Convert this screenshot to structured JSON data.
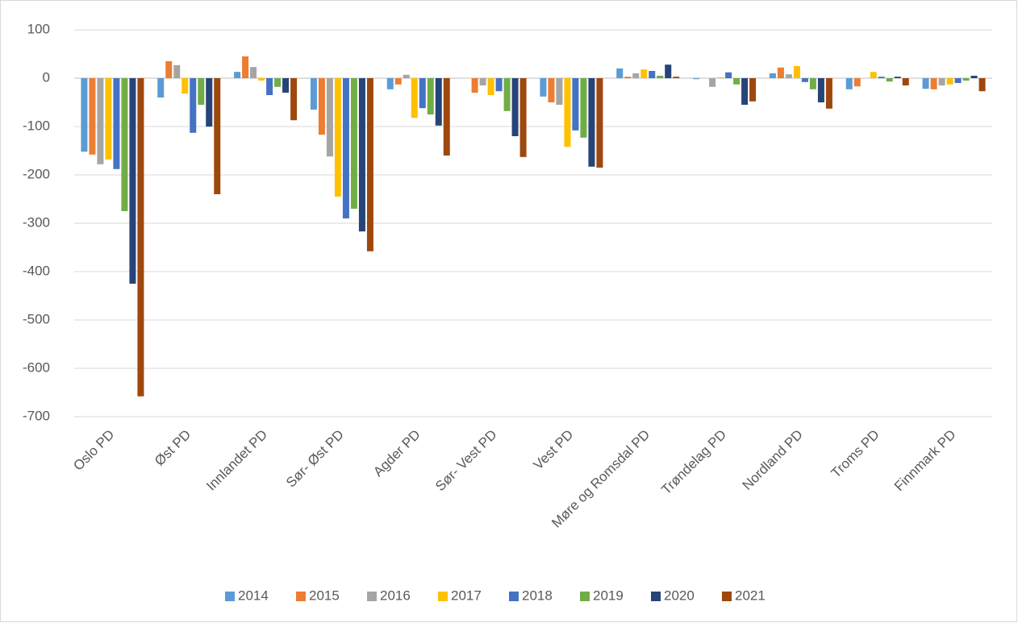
{
  "chart_data": {
    "type": "bar",
    "categories": [
      "Oslo PD",
      "Øst PD",
      "Innlandet PD",
      "Sør- Øst PD",
      "Agder PD",
      "Sør- Vest PD",
      "Vest PD",
      "Møre og Romsdal PD",
      "Trøndelag PD",
      "Nordland PD",
      "Troms PD",
      "Finnmark PD"
    ],
    "series": [
      {
        "name": "2014",
        "color": "#5b9bd5",
        "values": [
          -152,
          -40,
          13,
          -65,
          -23,
          0,
          -38,
          20,
          -2,
          10,
          -23,
          -22
        ]
      },
      {
        "name": "2015",
        "color": "#ed7d31",
        "values": [
          -158,
          35,
          45,
          -117,
          -13,
          -30,
          -50,
          3,
          0,
          22,
          -17,
          -23
        ]
      },
      {
        "name": "2016",
        "color": "#a5a5a5",
        "values": [
          -178,
          27,
          23,
          -162,
          7,
          -15,
          -55,
          10,
          -18,
          8,
          0,
          -15
        ]
      },
      {
        "name": "2017",
        "color": "#ffc000",
        "values": [
          -168,
          -32,
          -5,
          -245,
          -82,
          -35,
          -142,
          18,
          2,
          25,
          13,
          -13
        ]
      },
      {
        "name": "2018",
        "color": "#4472c4",
        "values": [
          -188,
          -113,
          -35,
          -290,
          -62,
          -27,
          -108,
          15,
          12,
          -8,
          3,
          -10
        ]
      },
      {
        "name": "2019",
        "color": "#70ad47",
        "values": [
          -275,
          -55,
          -18,
          -270,
          -75,
          -68,
          -123,
          5,
          -13,
          -23,
          -7,
          -5
        ]
      },
      {
        "name": "2020",
        "color": "#264478",
        "values": [
          -425,
          -100,
          -30,
          -317,
          -98,
          -120,
          -183,
          28,
          -55,
          -50,
          3,
          5
        ]
      },
      {
        "name": "2021",
        "color": "#9e480e",
        "values": [
          -658,
          -240,
          -87,
          -358,
          -160,
          -163,
          -185,
          3,
          -48,
          -63,
          -15,
          -27
        ]
      }
    ],
    "ylim": [
      -700,
      100
    ],
    "yticks": [
      100,
      0,
      -100,
      -200,
      -300,
      -400,
      -500,
      -600,
      -700
    ],
    "grid": true,
    "legend": "bottom"
  }
}
